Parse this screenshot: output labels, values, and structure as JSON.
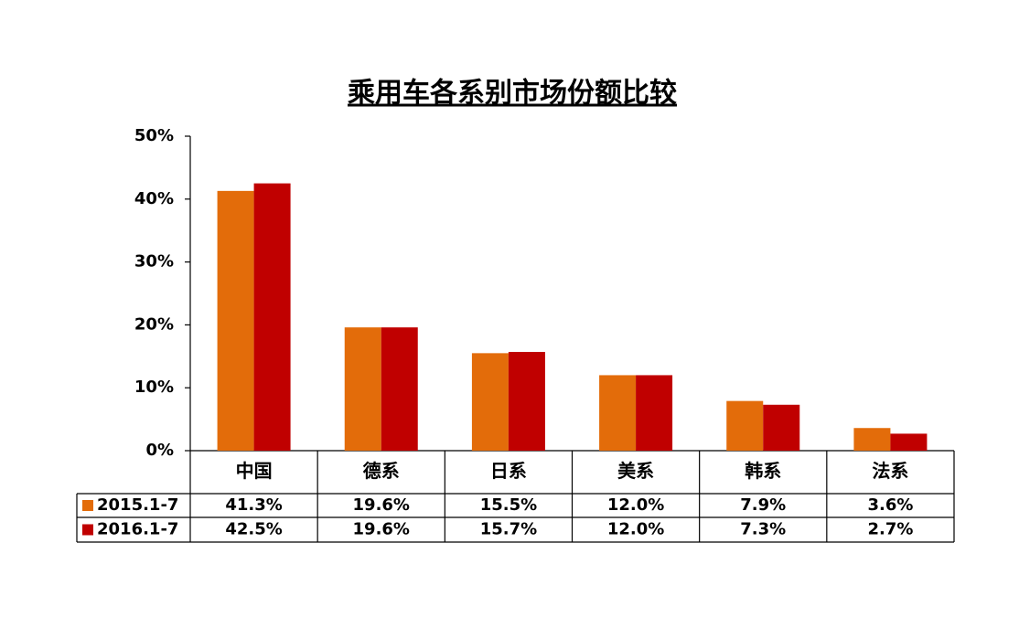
{
  "chart_data": {
    "type": "bar",
    "title": "乘用车各系别市场份额比较",
    "categories": [
      "中国",
      "德系",
      "日系",
      "美系",
      "韩系",
      "法系"
    ],
    "series": [
      {
        "name": "2015.1-7",
        "color": "#e36c0a",
        "values": [
          41.3,
          19.6,
          15.5,
          12.0,
          7.9,
          3.6
        ],
        "value_labels": [
          "41.3%",
          "19.6%",
          "15.5%",
          "12.0%",
          "7.9%",
          "3.6%"
        ]
      },
      {
        "name": "2016.1-7",
        "color": "#c00000",
        "values": [
          42.5,
          19.6,
          15.7,
          12.0,
          7.3,
          2.7
        ],
        "value_labels": [
          "42.5%",
          "19.6%",
          "15.7%",
          "12.0%",
          "7.3%",
          "2.7%"
        ]
      }
    ],
    "ylim": [
      0,
      50
    ],
    "yticks": [
      {
        "value": 0,
        "label": "0%"
      },
      {
        "value": 10,
        "label": "10%"
      },
      {
        "value": 20,
        "label": "20%"
      },
      {
        "value": 30,
        "label": "30%"
      },
      {
        "value": 40,
        "label": "40%"
      },
      {
        "value": 50,
        "label": "50%"
      }
    ],
    "grid": false
  }
}
